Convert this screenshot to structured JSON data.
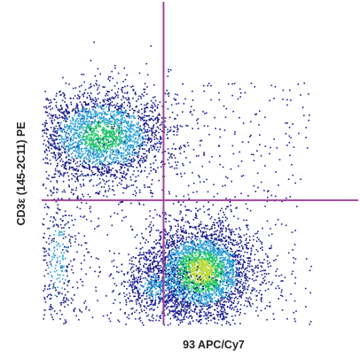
{
  "chart_data": {
    "type": "scatter",
    "subtype": "flow-cytometry-density-dot-plot",
    "xlabel": "93 APC/Cy7",
    "ylabel": "CD3ε (145-2C11) PE",
    "xlim": [
      0,
      1
    ],
    "ylim": [
      0,
      1
    ],
    "x_scale": "unlabeled (no tick labels shown)",
    "y_scale": "unlabeled (no tick labels shown)",
    "grid": false,
    "legend": "none",
    "quadrant_gates": {
      "x": 0.385,
      "y": 0.385
    },
    "populations": [
      {
        "center": [
          0.19,
          0.585
        ],
        "spread": [
          0.11,
          0.075
        ],
        "density": "medium",
        "count": 2600
      },
      {
        "center": [
          0.5,
          0.165
        ],
        "spread": [
          0.085,
          0.075
        ],
        "density": "high",
        "count": 3400
      },
      {
        "center": [
          0.36,
          0.12
        ],
        "spread": [
          0.06,
          0.05
        ],
        "density": "low",
        "count": 500
      },
      {
        "center": [
          0.05,
          0.2
        ],
        "spread": [
          0.04,
          0.13
        ],
        "density": "low",
        "count": 350
      }
    ],
    "background_events": 650,
    "colors": {
      "gate_line": "#a0449c",
      "density_low": "#1b1f8f",
      "density_mid": "#2aa0d8",
      "density_high": "#22c46a",
      "density_peak": "#b8d83c"
    }
  }
}
